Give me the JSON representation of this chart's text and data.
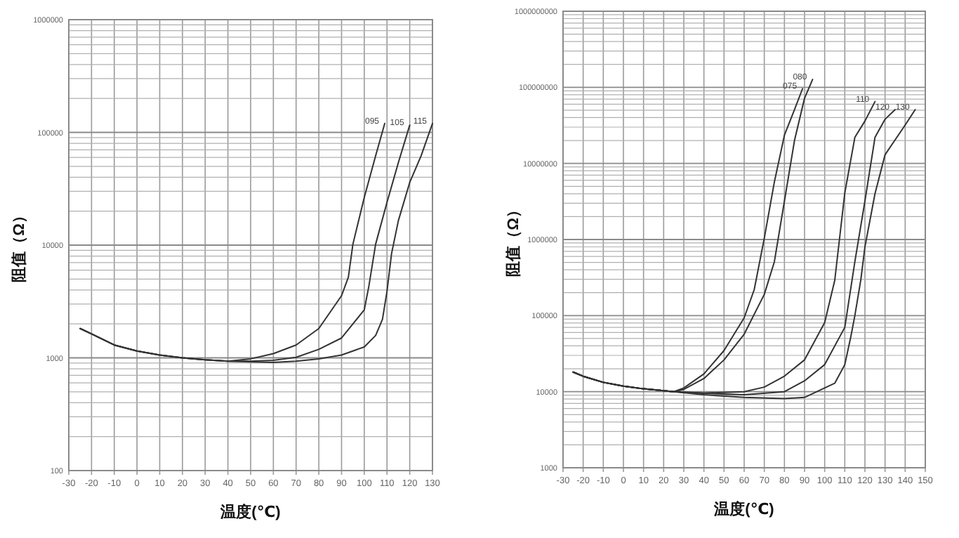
{
  "chart_data": [
    {
      "type": "line",
      "xlabel": "温度(℃)",
      "ylabel": "阻值（Ω）",
      "log": "y",
      "grid": true,
      "marker": "none",
      "line_style": "solid",
      "xlim": [
        -30,
        130
      ],
      "xticks": [
        -30,
        -20,
        -10,
        0,
        10,
        20,
        30,
        40,
        50,
        60,
        70,
        80,
        90,
        100,
        110,
        120,
        130
      ],
      "ylim": [
        100,
        1000000
      ],
      "yticks": [
        100,
        {
          "value": 200,
          "label": null
        },
        {
          "value": 300,
          "label": null
        },
        {
          "value": 400,
          "label": null
        },
        {
          "value": 500,
          "label": null
        },
        {
          "value": 600,
          "label": null
        },
        {
          "value": 700,
          "label": null
        },
        {
          "value": 800,
          "label": null
        },
        {
          "value": 900,
          "label": null
        },
        1000,
        {
          "value": 2000,
          "label": null
        },
        {
          "value": 3000,
          "label": null
        },
        {
          "value": 4000,
          "label": null
        },
        {
          "value": 5000,
          "label": null
        },
        {
          "value": 6000,
          "label": null
        },
        {
          "value": 7000,
          "label": null
        },
        {
          "value": 8000,
          "label": null
        },
        {
          "value": 9000,
          "label": null
        },
        10000,
        {
          "value": 20000,
          "label": null
        },
        {
          "value": 30000,
          "label": null
        },
        {
          "value": 40000,
          "label": null
        },
        {
          "value": 50000,
          "label": null
        },
        {
          "value": 60000,
          "label": null
        },
        {
          "value": 70000,
          "label": null
        },
        {
          "value": 80000,
          "label": null
        },
        {
          "value": 90000,
          "label": null
        },
        100000,
        {
          "value": 200000,
          "label": null
        },
        {
          "value": 300000,
          "label": null
        },
        {
          "value": 400000,
          "label": null
        },
        {
          "value": 500000,
          "label": null
        },
        {
          "value": 600000,
          "label": null
        },
        {
          "value": 700000,
          "label": null
        },
        {
          "value": 800000,
          "label": null
        },
        {
          "value": 900000,
          "label": null
        },
        1000000
      ],
      "series": [
        {
          "name": "095",
          "color": "#333333",
          "x": [
            -25,
            -20,
            -10,
            0,
            10,
            20,
            30,
            40,
            50,
            60,
            70,
            80,
            90,
            93,
            95,
            100,
            105,
            109
          ],
          "values": [
            1820,
            1630,
            1300,
            1150,
            1060,
            1000,
            960,
            935,
            980,
            1090,
            1300,
            1820,
            3560,
            5200,
            10200,
            26500,
            62000,
            120000
          ]
        },
        {
          "name": "105",
          "color": "#333333",
          "x": [
            -25,
            -20,
            -10,
            0,
            10,
            20,
            30,
            40,
            50,
            60,
            70,
            80,
            90,
            100,
            102,
            105,
            110,
            115,
            120
          ],
          "values": [
            1820,
            1630,
            1300,
            1150,
            1060,
            1000,
            960,
            935,
            935,
            950,
            1010,
            1190,
            1500,
            2670,
            4300,
            10200,
            24000,
            54000,
            116000
          ]
        },
        {
          "name": "115",
          "color": "#333333",
          "x": [
            -25,
            -20,
            -10,
            0,
            10,
            20,
            30,
            40,
            50,
            60,
            70,
            80,
            90,
            100,
            105,
            108,
            110,
            112,
            115,
            120,
            125,
            130
          ],
          "values": [
            1820,
            1630,
            1300,
            1150,
            1060,
            1000,
            960,
            935,
            920,
            910,
            935,
            980,
            1060,
            1250,
            1580,
            2200,
            3900,
            8400,
            16500,
            36000,
            62000,
            120000
          ]
        }
      ]
    },
    {
      "type": "line",
      "xlabel": "温度(℃)",
      "ylabel": "阻值（Ω）",
      "log": "y",
      "grid": true,
      "marker": "none",
      "line_style": "solid",
      "xlim": [
        -30,
        150
      ],
      "xticks": [
        -30,
        -20,
        -10,
        0,
        10,
        20,
        30,
        40,
        50,
        60,
        70,
        80,
        90,
        100,
        110,
        120,
        130,
        140,
        150
      ],
      "ylim": [
        1000,
        1000000000
      ],
      "yticks": [
        1000,
        {
          "value": 2000,
          "label": null
        },
        {
          "value": 3000,
          "label": null
        },
        {
          "value": 4000,
          "label": null
        },
        {
          "value": 5000,
          "label": null
        },
        {
          "value": 6000,
          "label": null
        },
        {
          "value": 7000,
          "label": null
        },
        {
          "value": 8000,
          "label": null
        },
        {
          "value": 9000,
          "label": null
        },
        10000,
        {
          "value": 20000,
          "label": null
        },
        {
          "value": 30000,
          "label": null
        },
        {
          "value": 40000,
          "label": null
        },
        {
          "value": 50000,
          "label": null
        },
        {
          "value": 60000,
          "label": null
        },
        {
          "value": 70000,
          "label": null
        },
        {
          "value": 80000,
          "label": null
        },
        {
          "value": 90000,
          "label": null
        },
        100000,
        {
          "value": 200000,
          "label": null
        },
        {
          "value": 300000,
          "label": null
        },
        {
          "value": 400000,
          "label": null
        },
        {
          "value": 500000,
          "label": null
        },
        {
          "value": 600000,
          "label": null
        },
        {
          "value": 700000,
          "label": null
        },
        {
          "value": 800000,
          "label": null
        },
        {
          "value": 900000,
          "label": null
        },
        1000000,
        {
          "value": 2000000,
          "label": null
        },
        {
          "value": 3000000,
          "label": null
        },
        {
          "value": 4000000,
          "label": null
        },
        {
          "value": 5000000,
          "label": null
        },
        {
          "value": 6000000,
          "label": null
        },
        {
          "value": 7000000,
          "label": null
        },
        {
          "value": 8000000,
          "label": null
        },
        {
          "value": 9000000,
          "label": null
        },
        10000000,
        {
          "value": 20000000,
          "label": null
        },
        {
          "value": 30000000,
          "label": null
        },
        {
          "value": 40000000,
          "label": null
        },
        {
          "value": 50000000,
          "label": null
        },
        {
          "value": 60000000,
          "label": null
        },
        {
          "value": 70000000,
          "label": null
        },
        {
          "value": 80000000,
          "label": null
        },
        {
          "value": 90000000,
          "label": null
        },
        100000000,
        {
          "value": 200000000,
          "label": null
        },
        {
          "value": 300000000,
          "label": null
        },
        {
          "value": 400000000,
          "label": null
        },
        {
          "value": 500000000,
          "label": null
        },
        {
          "value": 600000000,
          "label": null
        },
        {
          "value": 700000000,
          "label": null
        },
        {
          "value": 800000000,
          "label": null
        },
        {
          "value": 900000000,
          "label": null
        },
        1000000000
      ],
      "series": [
        {
          "name": "075",
          "color": "#333333",
          "x": [
            -25,
            -20,
            -10,
            0,
            10,
            20,
            25,
            30,
            40,
            50,
            60,
            65,
            70,
            75,
            80,
            85,
            89
          ],
          "values": [
            18100,
            15960,
            13270,
            11850,
            10900,
            10300,
            10000,
            11200,
            17100,
            34800,
            93500,
            220000,
            1040000,
            5700000,
            23500000,
            51000000,
            96000000
          ]
        },
        {
          "name": "080",
          "color": "#333333",
          "x": [
            -25,
            -20,
            -10,
            0,
            10,
            20,
            25,
            30,
            40,
            50,
            60,
            70,
            75,
            80,
            85,
            90,
            94
          ],
          "values": [
            18100,
            15960,
            13270,
            11850,
            10900,
            10300,
            10000,
            10700,
            14900,
            26200,
            57000,
            190000,
            510000,
            3200000,
            20000000,
            72000000,
            127000000
          ]
        },
        {
          "name": "110",
          "color": "#333333",
          "x": [
            -25,
            -20,
            -10,
            0,
            10,
            20,
            25,
            40,
            60,
            70,
            80,
            90,
            100,
            105,
            110,
            115,
            120,
            125
          ],
          "values": [
            18100,
            15960,
            13270,
            11850,
            10900,
            10300,
            10000,
            9600,
            10000,
            11500,
            16000,
            26200,
            81000,
            290000,
            4100000,
            22000000,
            36000000,
            65000000
          ]
        },
        {
          "name": "120",
          "color": "#333333",
          "x": [
            -25,
            -20,
            -10,
            0,
            10,
            20,
            25,
            40,
            60,
            80,
            90,
            100,
            110,
            115,
            120,
            125,
            130,
            135
          ],
          "values": [
            18100,
            15960,
            13270,
            11850,
            10900,
            10300,
            10000,
            9500,
            9100,
            10000,
            13900,
            22700,
            70000,
            510000,
            3200000,
            22000000,
            38000000,
            51000000
          ]
        },
        {
          "name": "130",
          "color": "#333333",
          "x": [
            -25,
            -20,
            -10,
            0,
            10,
            20,
            25,
            40,
            60,
            80,
            90,
            100,
            105,
            110,
            113,
            115,
            118,
            120,
            125,
            130,
            140,
            145
          ],
          "values": [
            18100,
            15960,
            13270,
            11850,
            10900,
            10300,
            10000,
            9100,
            8400,
            8100,
            8400,
            11200,
            12900,
            22700,
            53000,
            100000,
            300000,
            800000,
            4000000,
            13000000,
            32000000,
            51000000
          ]
        }
      ]
    }
  ]
}
